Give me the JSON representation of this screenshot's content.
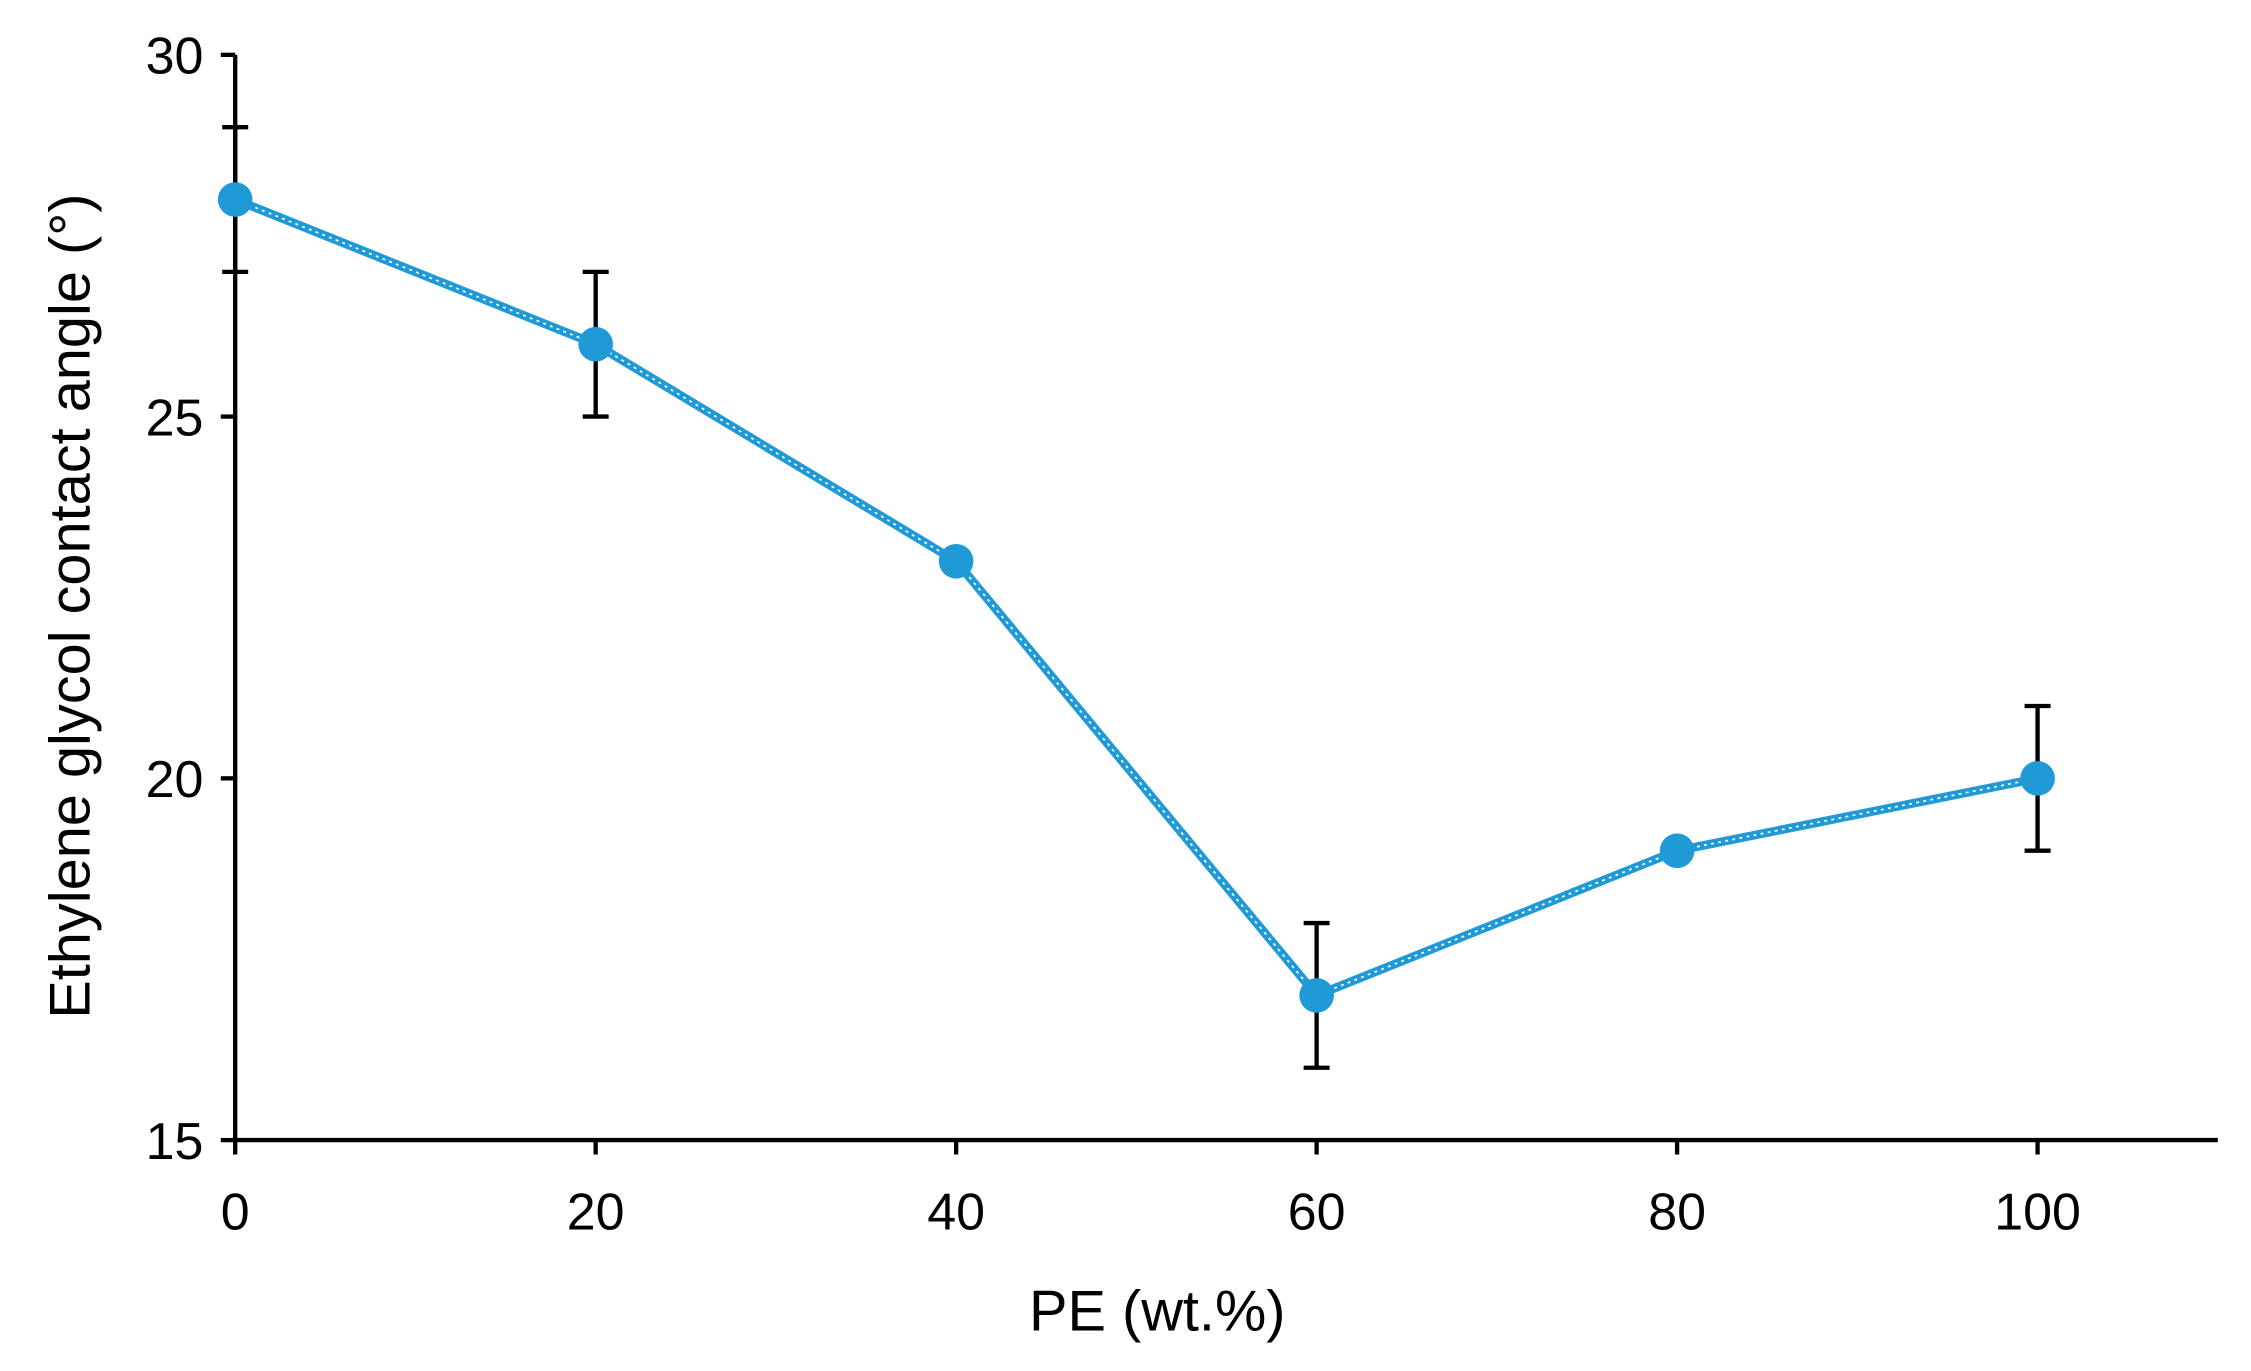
{
  "chart_data": {
    "type": "line",
    "title": "",
    "xlabel": "PE (wt.%)",
    "ylabel": "Ethylene glycol contact angle (°)",
    "xlim": [
      0,
      110
    ],
    "ylim": [
      15,
      30
    ],
    "xticks": [
      0,
      20,
      40,
      60,
      80,
      100
    ],
    "yticks": [
      15,
      20,
      25,
      30
    ],
    "grid": false,
    "series": [
      {
        "name": "Ethylene glycol contact angle",
        "color": "#1f9ad6",
        "x": [
          0,
          20,
          40,
          60,
          80,
          100
        ],
        "y": [
          28,
          26,
          23,
          17,
          19,
          20
        ],
        "error": [
          1,
          1,
          0,
          1,
          0,
          1
        ]
      }
    ]
  }
}
